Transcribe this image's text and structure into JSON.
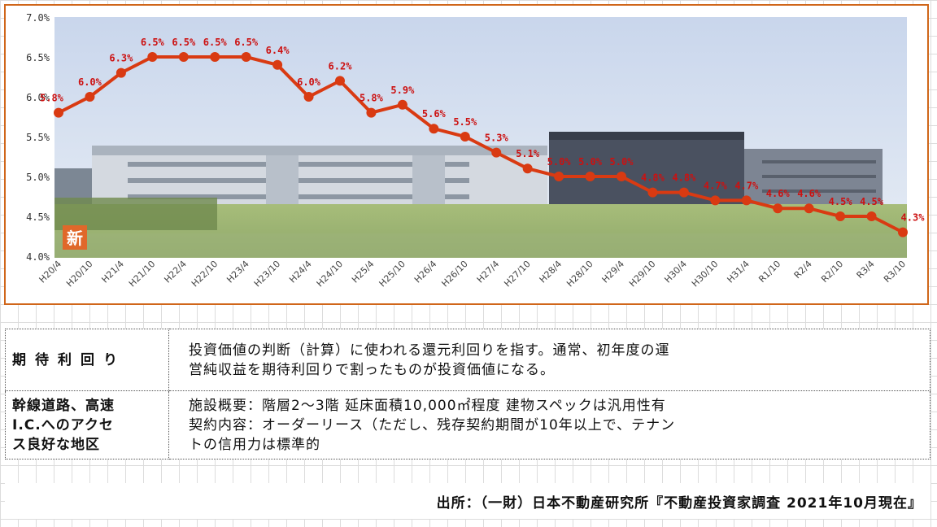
{
  "chart_data": {
    "type": "line",
    "categories": [
      "H20/4",
      "H20/10",
      "H21/4",
      "H21/10",
      "H22/4",
      "H22/10",
      "H23/4",
      "H23/10",
      "H24/4",
      "H24/10",
      "H25/4",
      "H25/10",
      "H26/4",
      "H26/10",
      "H27/4",
      "H27/10",
      "H28/4",
      "H28/10",
      "H29/4",
      "H29/10",
      "H30/4",
      "H30/10",
      "H31/4",
      "R1/10",
      "R2/4",
      "R2/10",
      "R3/4",
      "R3/10"
    ],
    "values": [
      5.8,
      6.0,
      6.3,
      6.5,
      6.5,
      6.5,
      6.5,
      6.4,
      6.0,
      6.2,
      5.8,
      5.9,
      5.6,
      5.5,
      5.3,
      5.1,
      5.0,
      5.0,
      5.0,
      4.8,
      4.8,
      4.7,
      4.7,
      4.6,
      4.6,
      4.5,
      4.5,
      4.3
    ],
    "data_labels": [
      "5.8%",
      "6.0%",
      "6.3%",
      "6.5%",
      "6.5%",
      "6.5%",
      "6.5%",
      "6.4%",
      "6.0%",
      "6.2%",
      "5.8%",
      "5.9%",
      "5.6%",
      "5.5%",
      "5.3%",
      "5.1%",
      "5.0%",
      "5.0%",
      "5.0%",
      "4.8%",
      "4.8%",
      "4.7%",
      "4.7%",
      "4.6%",
      "4.6%",
      "4.5%",
      "4.5%",
      "4.3%"
    ],
    "ylim": [
      4.0,
      7.0
    ],
    "yticks": [
      "4.0%",
      "4.5%",
      "5.0%",
      "5.5%",
      "6.0%",
      "6.5%",
      "7.0%"
    ],
    "grid": false,
    "line_color": "#d93a12",
    "label_color": "#cc1111",
    "badge": "新"
  },
  "table": {
    "rows": [
      {
        "key": "期待利回り",
        "lines": [
          "投資価値の判断（計算）に使われる還元利回りを指す。通常、初年度の運",
          "営純収益を期待利回りで割ったものが投資価値になる。"
        ]
      },
      {
        "key_lines": [
          "幹線道路、高速",
          "I.C.へのアクセ",
          "ス良好な地区"
        ],
        "lines": [
          "施設概要：階層2～3階 延床面積10,000㎡程度 建物スペックは汎用性有",
          "契約内容：オーダーリース（ただし、残存契約期間が10年以上で、テナン",
          "トの信用力は標準的"
        ]
      }
    ]
  },
  "source": "出所：（一財）日本不動産研究所『不動産投資家調査 2021年10月現在』"
}
